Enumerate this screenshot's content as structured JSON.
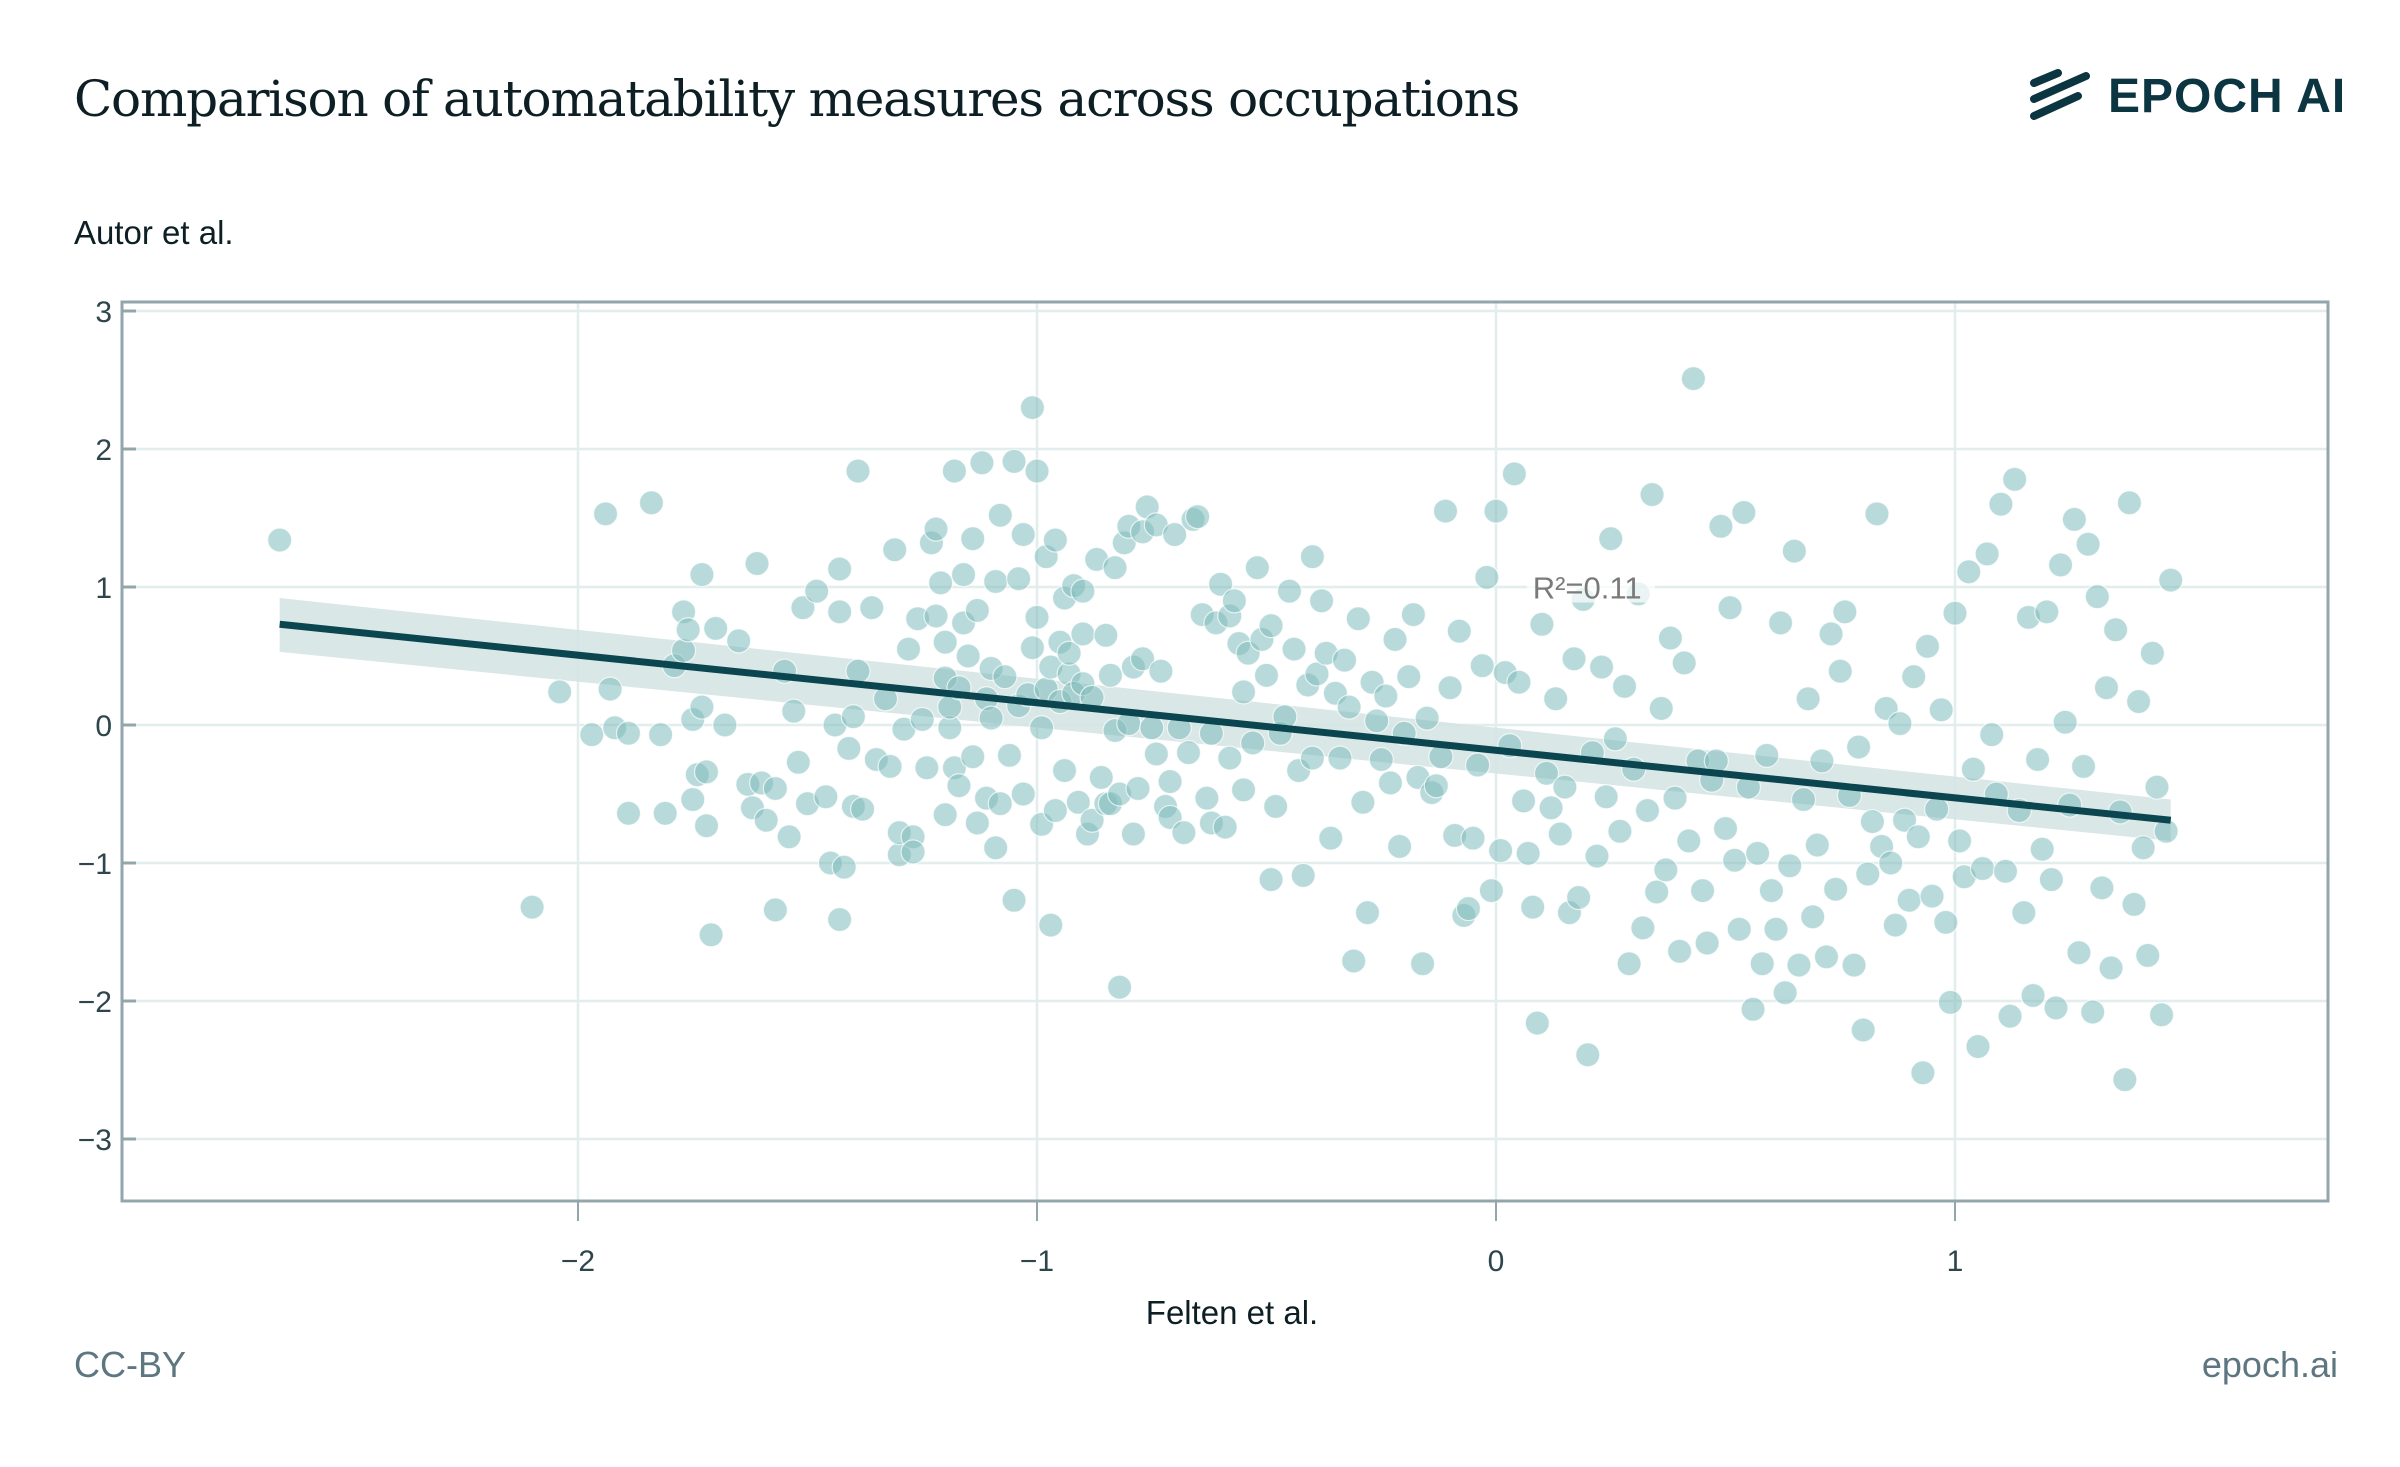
{
  "header": {
    "title": "Comparison of automatability measures across occupations",
    "logo_text": "EPOCH AI",
    "logo_icon": "epoch-stripes-icon"
  },
  "footer": {
    "license": "CC-BY",
    "site": "epoch.ai"
  },
  "colors": {
    "point": "#7fbcbc",
    "line": "#0a4550",
    "band": "#d3e3e3",
    "grid": "#e2eeee",
    "axis": "#93a6ab",
    "text": "#0d1f24"
  },
  "chart_data": {
    "type": "scatter",
    "title": "Comparison of automatability measures across occupations",
    "xlabel": "Felten et al.",
    "ylabel": "Autor et al.",
    "xlim": [
      -3.0,
      1.81
    ],
    "ylim": [
      -3.45,
      3.1
    ],
    "xticks": [
      -2,
      -1,
      0,
      1
    ],
    "xtick_labels": [
      "−2",
      "−1",
      "0",
      "1"
    ],
    "yticks": [
      3,
      2,
      1,
      0,
      -1,
      -2,
      -3
    ],
    "ytick_labels": [
      "3",
      "2",
      "1",
      "0",
      "−1",
      "−2",
      "−3"
    ],
    "grid": true,
    "annotation": "R²=0.11",
    "annotation_pos": [
      0.08,
      0.96
    ],
    "fit": {
      "x": [
        -2.65,
        1.47
      ],
      "y": [
        0.73,
        -0.69
      ],
      "ci_upper": [
        0.92,
        -0.54
      ],
      "ci_lower": [
        0.53,
        -0.84
      ]
    },
    "points": [
      [
        -2.65,
        1.34
      ],
      [
        -2.1,
        -1.32
      ],
      [
        -2.04,
        0.24
      ],
      [
        -1.97,
        -0.07
      ],
      [
        -1.94,
        1.53
      ],
      [
        -1.93,
        0.26
      ],
      [
        -1.92,
        -0.02
      ],
      [
        -1.89,
        -0.06
      ],
      [
        -1.89,
        -0.64
      ],
      [
        -1.84,
        1.61
      ],
      [
        -1.82,
        -0.07
      ],
      [
        -1.81,
        -0.64
      ],
      [
        -1.79,
        0.43
      ],
      [
        -1.77,
        0.54
      ],
      [
        -1.77,
        0.82
      ],
      [
        -1.76,
        0.69
      ],
      [
        -1.75,
        -0.54
      ],
      [
        -1.75,
        0.04
      ],
      [
        -1.74,
        -0.36
      ],
      [
        -1.73,
        0.13
      ],
      [
        -1.73,
        1.09
      ],
      [
        -1.72,
        -0.73
      ],
      [
        -1.72,
        -0.34
      ],
      [
        -1.71,
        -1.52
      ],
      [
        -1.7,
        0.7
      ],
      [
        -1.68,
        0.0
      ],
      [
        -1.65,
        0.61
      ],
      [
        -1.63,
        -0.43
      ],
      [
        -1.62,
        -0.6
      ],
      [
        -1.61,
        1.17
      ],
      [
        -1.6,
        -0.42
      ],
      [
        -1.59,
        -0.69
      ],
      [
        -1.57,
        -1.34
      ],
      [
        -1.57,
        -0.46
      ],
      [
        -1.55,
        0.39
      ],
      [
        -1.54,
        -0.81
      ],
      [
        -1.53,
        0.1
      ],
      [
        -1.52,
        -0.27
      ],
      [
        -1.51,
        0.85
      ],
      [
        -1.5,
        -0.57
      ],
      [
        -1.48,
        0.97
      ],
      [
        -1.46,
        -0.52
      ],
      [
        -1.45,
        -1.0
      ],
      [
        -1.44,
        0.0
      ],
      [
        -1.43,
        -1.41
      ],
      [
        -1.43,
        0.82
      ],
      [
        -1.43,
        1.13
      ],
      [
        -1.42,
        -1.03
      ],
      [
        -1.41,
        -0.17
      ],
      [
        -1.4,
        0.06
      ],
      [
        -1.4,
        -0.59
      ],
      [
        -1.39,
        1.84
      ],
      [
        -1.39,
        0.39
      ],
      [
        -1.38,
        -0.61
      ],
      [
        -1.36,
        0.85
      ],
      [
        -1.35,
        -0.25
      ],
      [
        -1.33,
        0.19
      ],
      [
        -1.32,
        -0.3
      ],
      [
        -1.31,
        1.27
      ],
      [
        -1.3,
        -0.94
      ],
      [
        -1.3,
        -0.78
      ],
      [
        -1.29,
        -0.03
      ],
      [
        -1.28,
        0.55
      ],
      [
        -1.27,
        -0.81
      ],
      [
        -1.27,
        -0.92
      ],
      [
        -1.26,
        0.77
      ],
      [
        -1.25,
        0.04
      ],
      [
        -1.24,
        -0.31
      ],
      [
        -1.23,
        1.32
      ],
      [
        -1.22,
        0.79
      ],
      [
        -1.22,
        1.42
      ],
      [
        -1.21,
        1.03
      ],
      [
        -1.2,
        0.34
      ],
      [
        -1.2,
        -0.65
      ],
      [
        -1.2,
        0.6
      ],
      [
        -1.19,
        -0.02
      ],
      [
        -1.19,
        0.13
      ],
      [
        -1.18,
        -0.31
      ],
      [
        -1.18,
        1.84
      ],
      [
        -1.17,
        0.27
      ],
      [
        -1.17,
        -0.44
      ],
      [
        -1.16,
        0.74
      ],
      [
        -1.16,
        1.09
      ],
      [
        -1.15,
        0.5
      ],
      [
        -1.14,
        -0.23
      ],
      [
        -1.14,
        1.35
      ],
      [
        -1.13,
        -0.71
      ],
      [
        -1.13,
        0.83
      ],
      [
        -1.12,
        1.9
      ],
      [
        -1.11,
        0.19
      ],
      [
        -1.11,
        -0.53
      ],
      [
        -1.1,
        0.41
      ],
      [
        -1.1,
        0.05
      ],
      [
        -1.09,
        -0.89
      ],
      [
        -1.09,
        1.04
      ],
      [
        -1.08,
        -0.57
      ],
      [
        -1.08,
        1.52
      ],
      [
        -1.07,
        0.35
      ],
      [
        -1.06,
        -0.22
      ],
      [
        -1.05,
        -1.27
      ],
      [
        -1.05,
        1.91
      ],
      [
        -1.04,
        1.06
      ],
      [
        -1.04,
        0.14
      ],
      [
        -1.03,
        -0.5
      ],
      [
        -1.03,
        1.38
      ],
      [
        -1.02,
        0.22
      ],
      [
        -1.01,
        0.56
      ],
      [
        -1.01,
        2.3
      ],
      [
        -1.0,
        1.84
      ],
      [
        -1.0,
        0.78
      ],
      [
        -0.99,
        -0.72
      ],
      [
        -0.99,
        -0.02
      ],
      [
        -0.98,
        1.22
      ],
      [
        -0.98,
        0.26
      ],
      [
        -0.97,
        0.42
      ],
      [
        -0.97,
        -1.45
      ],
      [
        -0.96,
        -0.62
      ],
      [
        -0.96,
        1.34
      ],
      [
        -0.95,
        0.6
      ],
      [
        -0.95,
        0.17
      ],
      [
        -0.94,
        -0.33
      ],
      [
        -0.94,
        0.92
      ],
      [
        -0.93,
        0.37
      ],
      [
        -0.93,
        0.52
      ],
      [
        -0.92,
        0.23
      ],
      [
        -0.92,
        1.01
      ],
      [
        -0.91,
        -0.56
      ],
      [
        -0.9,
        0.66
      ],
      [
        -0.9,
        0.3
      ],
      [
        -0.9,
        0.97
      ],
      [
        -0.89,
        -0.79
      ],
      [
        -0.88,
        -0.69
      ],
      [
        -0.88,
        0.2
      ],
      [
        -0.87,
        1.2
      ],
      [
        -0.86,
        -0.38
      ],
      [
        -0.85,
        -0.57
      ],
      [
        -0.85,
        0.65
      ],
      [
        -0.84,
        -0.57
      ],
      [
        -0.84,
        0.36
      ],
      [
        -0.83,
        -0.04
      ],
      [
        -0.83,
        1.14
      ],
      [
        -0.82,
        -1.9
      ],
      [
        -0.82,
        -0.5
      ],
      [
        -0.81,
        1.32
      ],
      [
        -0.8,
        0.01
      ],
      [
        -0.8,
        1.44
      ],
      [
        -0.79,
        -0.79
      ],
      [
        -0.79,
        0.42
      ],
      [
        -0.78,
        -0.46
      ],
      [
        -0.77,
        0.48
      ],
      [
        -0.77,
        1.4
      ],
      [
        -0.76,
        1.58
      ],
      [
        -0.75,
        -0.02
      ],
      [
        -0.74,
        -0.21
      ],
      [
        -0.74,
        1.45
      ],
      [
        -0.73,
        0.39
      ],
      [
        -0.72,
        -0.59
      ],
      [
        -0.71,
        -0.67
      ],
      [
        -0.71,
        -0.41
      ],
      [
        -0.7,
        1.38
      ],
      [
        -0.69,
        -0.02
      ],
      [
        -0.68,
        -0.78
      ],
      [
        -0.67,
        -0.2
      ],
      [
        -0.66,
        1.49
      ],
      [
        -0.65,
        1.51
      ],
      [
        -0.64,
        0.8
      ],
      [
        -0.63,
        -0.53
      ],
      [
        -0.62,
        -0.71
      ],
      [
        -0.62,
        -0.06
      ],
      [
        -0.61,
        0.74
      ],
      [
        -0.6,
        1.02
      ],
      [
        -0.59,
        -0.74
      ],
      [
        -0.58,
        -0.24
      ],
      [
        -0.58,
        0.79
      ],
      [
        -0.57,
        0.9
      ],
      [
        -0.56,
        0.59
      ],
      [
        -0.55,
        -0.47
      ],
      [
        -0.55,
        0.24
      ],
      [
        -0.54,
        0.52
      ],
      [
        -0.53,
        -0.13
      ],
      [
        -0.52,
        1.14
      ],
      [
        -0.51,
        0.62
      ],
      [
        -0.5,
        0.36
      ],
      [
        -0.49,
        -1.12
      ],
      [
        -0.49,
        0.72
      ],
      [
        -0.48,
        -0.59
      ],
      [
        -0.47,
        -0.06
      ],
      [
        -0.46,
        0.06
      ],
      [
        -0.45,
        0.97
      ],
      [
        -0.44,
        0.55
      ],
      [
        -0.43,
        -0.33
      ],
      [
        -0.42,
        -1.09
      ],
      [
        -0.41,
        0.29
      ],
      [
        -0.4,
        1.22
      ],
      [
        -0.4,
        -0.24
      ],
      [
        -0.39,
        0.37
      ],
      [
        -0.38,
        0.9
      ],
      [
        -0.37,
        0.52
      ],
      [
        -0.36,
        -0.82
      ],
      [
        -0.35,
        0.23
      ],
      [
        -0.34,
        -0.24
      ],
      [
        -0.33,
        0.47
      ],
      [
        -0.32,
        0.13
      ],
      [
        -0.31,
        -1.71
      ],
      [
        -0.3,
        0.77
      ],
      [
        -0.29,
        -0.56
      ],
      [
        -0.28,
        -1.36
      ],
      [
        -0.27,
        0.31
      ],
      [
        -0.26,
        0.03
      ],
      [
        -0.25,
        -0.25
      ],
      [
        -0.24,
        0.21
      ],
      [
        -0.23,
        -0.42
      ],
      [
        -0.22,
        0.62
      ],
      [
        -0.21,
        -0.88
      ],
      [
        -0.2,
        -0.06
      ],
      [
        -0.19,
        0.35
      ],
      [
        -0.18,
        0.8
      ],
      [
        -0.17,
        -0.38
      ],
      [
        -0.16,
        -1.73
      ],
      [
        -0.15,
        0.05
      ],
      [
        -0.14,
        -0.49
      ],
      [
        -0.13,
        -0.44
      ],
      [
        -0.12,
        -0.23
      ],
      [
        -0.11,
        1.55
      ],
      [
        -0.1,
        0.27
      ],
      [
        -0.09,
        -0.8
      ],
      [
        -0.08,
        0.68
      ],
      [
        -0.07,
        -1.38
      ],
      [
        -0.06,
        -1.33
      ],
      [
        -0.05,
        -0.82
      ],
      [
        -0.04,
        -0.29
      ],
      [
        -0.03,
        0.43
      ],
      [
        -0.02,
        1.07
      ],
      [
        -0.01,
        -1.2
      ],
      [
        0.0,
        1.55
      ],
      [
        0.01,
        -0.91
      ],
      [
        0.02,
        0.38
      ],
      [
        0.03,
        -0.15
      ],
      [
        0.04,
        1.82
      ],
      [
        0.05,
        0.31
      ],
      [
        0.06,
        -0.55
      ],
      [
        0.07,
        -0.93
      ],
      [
        0.08,
        -1.32
      ],
      [
        0.09,
        -2.16
      ],
      [
        0.1,
        0.73
      ],
      [
        0.11,
        -0.35
      ],
      [
        0.12,
        -0.6
      ],
      [
        0.13,
        0.19
      ],
      [
        0.14,
        -0.79
      ],
      [
        0.15,
        -0.45
      ],
      [
        0.16,
        -1.36
      ],
      [
        0.17,
        0.48
      ],
      [
        0.18,
        -1.25
      ],
      [
        0.19,
        0.91
      ],
      [
        0.2,
        -2.39
      ],
      [
        0.21,
        -0.2
      ],
      [
        0.22,
        -0.95
      ],
      [
        0.23,
        0.42
      ],
      [
        0.24,
        -0.52
      ],
      [
        0.25,
        1.35
      ],
      [
        0.26,
        -0.1
      ],
      [
        0.27,
        -0.77
      ],
      [
        0.28,
        0.28
      ],
      [
        0.29,
        -1.73
      ],
      [
        0.3,
        -0.32
      ],
      [
        0.31,
        0.95
      ],
      [
        0.32,
        -1.47
      ],
      [
        0.33,
        -0.62
      ],
      [
        0.34,
        1.67
      ],
      [
        0.35,
        -1.21
      ],
      [
        0.36,
        0.12
      ],
      [
        0.37,
        -1.05
      ],
      [
        0.38,
        0.63
      ],
      [
        0.39,
        -0.53
      ],
      [
        0.4,
        -1.64
      ],
      [
        0.41,
        0.45
      ],
      [
        0.42,
        -0.84
      ],
      [
        0.43,
        2.51
      ],
      [
        0.44,
        -0.26
      ],
      [
        0.45,
        -1.2
      ],
      [
        0.46,
        -1.58
      ],
      [
        0.47,
        -0.4
      ],
      [
        0.48,
        -0.26
      ],
      [
        0.49,
        1.44
      ],
      [
        0.5,
        -0.75
      ],
      [
        0.51,
        0.85
      ],
      [
        0.52,
        -0.98
      ],
      [
        0.53,
        -1.48
      ],
      [
        0.54,
        1.54
      ],
      [
        0.55,
        -0.45
      ],
      [
        0.56,
        -2.06
      ],
      [
        0.57,
        -0.93
      ],
      [
        0.58,
        -1.73
      ],
      [
        0.59,
        -0.22
      ],
      [
        0.6,
        -1.2
      ],
      [
        0.61,
        -1.48
      ],
      [
        0.62,
        0.74
      ],
      [
        0.63,
        -1.94
      ],
      [
        0.64,
        -1.02
      ],
      [
        0.65,
        1.26
      ],
      [
        0.66,
        -1.74
      ],
      [
        0.67,
        -0.54
      ],
      [
        0.68,
        0.19
      ],
      [
        0.69,
        -1.39
      ],
      [
        0.7,
        -0.87
      ],
      [
        0.71,
        -0.26
      ],
      [
        0.72,
        -1.68
      ],
      [
        0.73,
        0.66
      ],
      [
        0.74,
        -1.19
      ],
      [
        0.75,
        0.39
      ],
      [
        0.76,
        0.82
      ],
      [
        0.77,
        -0.51
      ],
      [
        0.78,
        -1.74
      ],
      [
        0.79,
        -0.16
      ],
      [
        0.8,
        -2.21
      ],
      [
        0.81,
        -1.08
      ],
      [
        0.82,
        -0.7
      ],
      [
        0.83,
        1.53
      ],
      [
        0.84,
        -0.88
      ],
      [
        0.85,
        0.12
      ],
      [
        0.86,
        -1.0
      ],
      [
        0.87,
        -1.45
      ],
      [
        0.88,
        0.01
      ],
      [
        0.89,
        -0.69
      ],
      [
        0.9,
        -1.27
      ],
      [
        0.91,
        0.35
      ],
      [
        0.92,
        -0.81
      ],
      [
        0.93,
        -2.52
      ],
      [
        0.94,
        0.57
      ],
      [
        0.95,
        -1.24
      ],
      [
        0.96,
        -0.61
      ],
      [
        0.97,
        0.11
      ],
      [
        0.98,
        -1.43
      ],
      [
        0.99,
        -2.01
      ],
      [
        1.0,
        0.81
      ],
      [
        1.01,
        -0.84
      ],
      [
        1.02,
        -1.1
      ],
      [
        1.03,
        1.11
      ],
      [
        1.04,
        -0.32
      ],
      [
        1.05,
        -2.33
      ],
      [
        1.06,
        -1.04
      ],
      [
        1.07,
        1.24
      ],
      [
        1.08,
        -0.07
      ],
      [
        1.09,
        -0.5
      ],
      [
        1.1,
        1.6
      ],
      [
        1.11,
        -1.06
      ],
      [
        1.12,
        -2.11
      ],
      [
        1.13,
        1.78
      ],
      [
        1.14,
        -0.62
      ],
      [
        1.15,
        -1.36
      ],
      [
        1.16,
        0.78
      ],
      [
        1.17,
        -1.96
      ],
      [
        1.18,
        -0.25
      ],
      [
        1.19,
        -0.9
      ],
      [
        1.2,
        0.82
      ],
      [
        1.21,
        -1.12
      ],
      [
        1.22,
        -2.05
      ],
      [
        1.23,
        1.16
      ],
      [
        1.24,
        0.02
      ],
      [
        1.25,
        -0.58
      ],
      [
        1.26,
        1.49
      ],
      [
        1.27,
        -1.65
      ],
      [
        1.28,
        -0.3
      ],
      [
        1.29,
        1.31
      ],
      [
        1.3,
        -2.08
      ],
      [
        1.31,
        0.93
      ],
      [
        1.32,
        -1.18
      ],
      [
        1.33,
        0.27
      ],
      [
        1.34,
        -1.76
      ],
      [
        1.35,
        0.69
      ],
      [
        1.36,
        -0.63
      ],
      [
        1.37,
        -2.57
      ],
      [
        1.38,
        1.61
      ],
      [
        1.39,
        -1.3
      ],
      [
        1.4,
        0.17
      ],
      [
        1.41,
        -0.89
      ],
      [
        1.42,
        -1.67
      ],
      [
        1.43,
        0.52
      ],
      [
        1.44,
        -0.45
      ],
      [
        1.45,
        -2.1
      ],
      [
        1.46,
        -0.77
      ],
      [
        1.47,
        1.05
      ]
    ]
  }
}
